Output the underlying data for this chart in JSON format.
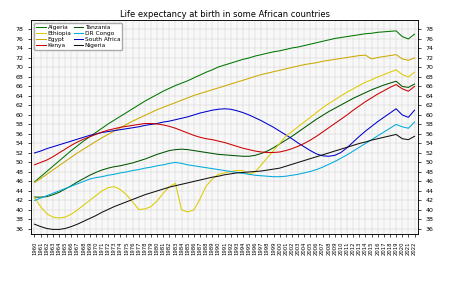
{
  "title": "Life expectancy at birth in some African countries",
  "years": [
    1960,
    1961,
    1962,
    1963,
    1964,
    1965,
    1966,
    1967,
    1968,
    1969,
    1970,
    1971,
    1972,
    1973,
    1974,
    1975,
    1976,
    1977,
    1978,
    1979,
    1980,
    1981,
    1982,
    1983,
    1984,
    1985,
    1986,
    1987,
    1988,
    1989,
    1990,
    1991,
    1992,
    1993,
    1994,
    1995,
    1996,
    1997,
    1998,
    1999,
    2000,
    2001,
    2002,
    2003,
    2004,
    2005,
    2006,
    2007,
    2008,
    2009,
    2010,
    2011,
    2012,
    2013,
    2014,
    2015,
    2016,
    2017,
    2018,
    2019,
    2020,
    2021,
    2022
  ],
  "series": {
    "Algeria": [
      45.9,
      47.0,
      48.1,
      49.2,
      50.3,
      51.4,
      52.5,
      53.5,
      54.5,
      55.4,
      56.3,
      57.2,
      58.1,
      58.9,
      59.7,
      60.5,
      61.3,
      62.1,
      62.9,
      63.6,
      64.3,
      65.0,
      65.6,
      66.2,
      66.7,
      67.2,
      67.8,
      68.4,
      69.0,
      69.5,
      70.1,
      70.5,
      70.9,
      71.3,
      71.7,
      72.0,
      72.4,
      72.7,
      73.0,
      73.3,
      73.5,
      73.8,
      74.1,
      74.3,
      74.6,
      74.9,
      75.2,
      75.5,
      75.8,
      76.1,
      76.3,
      76.5,
      76.7,
      76.9,
      77.1,
      77.2,
      77.4,
      77.5,
      77.6,
      77.7,
      76.5,
      76.0,
      77.0
    ],
    "Egypt": [
      45.8,
      46.6,
      47.5,
      48.4,
      49.3,
      50.2,
      51.1,
      52.0,
      52.8,
      53.6,
      54.4,
      55.2,
      55.9,
      56.6,
      57.3,
      58.0,
      58.7,
      59.3,
      59.9,
      60.5,
      61.1,
      61.6,
      62.1,
      62.6,
      63.1,
      63.6,
      64.1,
      64.5,
      64.9,
      65.3,
      65.7,
      66.1,
      66.5,
      66.9,
      67.3,
      67.7,
      68.1,
      68.5,
      68.8,
      69.1,
      69.4,
      69.7,
      70.0,
      70.3,
      70.6,
      70.8,
      71.0,
      71.3,
      71.5,
      71.7,
      71.9,
      72.1,
      72.3,
      72.5,
      72.6,
      71.8,
      72.1,
      72.3,
      72.5,
      72.7,
      71.8,
      71.5,
      72.0
    ],
    "Tanzania": [
      42.7,
      42.7,
      42.8,
      43.2,
      43.7,
      44.4,
      45.1,
      45.9,
      46.6,
      47.3,
      47.9,
      48.4,
      48.8,
      49.1,
      49.3,
      49.6,
      49.9,
      50.3,
      50.7,
      51.2,
      51.7,
      52.1,
      52.5,
      52.7,
      52.8,
      52.7,
      52.5,
      52.3,
      52.1,
      51.9,
      51.7,
      51.6,
      51.5,
      51.4,
      51.3,
      51.3,
      51.5,
      51.9,
      52.4,
      53.1,
      53.9,
      54.7,
      55.5,
      56.4,
      57.3,
      58.2,
      59.1,
      59.9,
      60.7,
      61.4,
      62.1,
      62.8,
      63.5,
      64.1,
      64.7,
      65.3,
      65.8,
      66.3,
      66.7,
      67.1,
      66.0,
      65.8,
      66.5
    ],
    "South Africa": [
      52.0,
      52.4,
      52.9,
      53.3,
      53.7,
      54.1,
      54.5,
      54.9,
      55.3,
      55.7,
      56.0,
      56.3,
      56.5,
      56.7,
      56.9,
      57.1,
      57.3,
      57.5,
      57.8,
      58.0,
      58.2,
      58.5,
      58.7,
      59.0,
      59.3,
      59.6,
      60.0,
      60.4,
      60.7,
      61.0,
      61.2,
      61.3,
      61.2,
      60.9,
      60.5,
      60.0,
      59.4,
      58.8,
      58.1,
      57.4,
      56.6,
      55.8,
      55.0,
      54.1,
      53.3,
      52.5,
      51.8,
      51.4,
      51.3,
      51.5,
      52.1,
      53.1,
      54.3,
      55.5,
      56.6,
      57.6,
      58.6,
      59.5,
      60.4,
      61.3,
      60.0,
      59.5,
      61.0
    ],
    "Ethiopia": [
      42.6,
      40.7,
      39.2,
      38.5,
      38.3,
      38.5,
      39.1,
      40.0,
      41.0,
      42.0,
      43.0,
      44.0,
      44.7,
      44.9,
      44.3,
      43.2,
      41.7,
      40.1,
      40.2,
      40.7,
      41.9,
      43.5,
      44.9,
      45.6,
      40.0,
      39.6,
      40.0,
      42.3,
      45.0,
      46.5,
      47.5,
      47.8,
      48.1,
      48.3,
      48.3,
      47.5,
      48.0,
      49.5,
      51.0,
      52.5,
      54.0,
      55.5,
      56.5,
      57.5,
      58.5,
      59.5,
      60.5,
      61.5,
      62.4,
      63.2,
      64.0,
      64.8,
      65.5,
      66.2,
      66.9,
      67.4,
      68.0,
      68.5,
      69.0,
      69.5,
      68.5,
      68.0,
      69.0
    ],
    "Kenya": [
      49.5,
      50.0,
      50.5,
      51.2,
      52.0,
      52.8,
      53.6,
      54.3,
      54.9,
      55.4,
      55.9,
      56.4,
      56.8,
      57.1,
      57.4,
      57.6,
      57.8,
      58.0,
      58.2,
      58.2,
      58.1,
      57.9,
      57.6,
      57.2,
      56.7,
      56.2,
      55.7,
      55.3,
      55.0,
      54.8,
      54.5,
      54.2,
      53.8,
      53.4,
      53.0,
      52.7,
      52.4,
      52.2,
      52.1,
      52.1,
      52.2,
      52.5,
      52.9,
      53.4,
      54.0,
      54.7,
      55.5,
      56.4,
      57.3,
      58.2,
      59.1,
      60.0,
      61.0,
      61.9,
      62.8,
      63.6,
      64.4,
      65.1,
      65.8,
      66.4,
      65.5,
      65.0,
      66.0
    ],
    "DR Congo": [
      42.0,
      42.5,
      43.0,
      43.5,
      44.0,
      44.5,
      45.0,
      45.5,
      46.0,
      46.5,
      46.8,
      47.0,
      47.3,
      47.5,
      47.8,
      48.0,
      48.3,
      48.5,
      48.8,
      49.0,
      49.3,
      49.5,
      49.8,
      50.0,
      49.8,
      49.5,
      49.3,
      49.1,
      48.9,
      48.7,
      48.5,
      48.3,
      48.1,
      47.9,
      47.7,
      47.5,
      47.3,
      47.2,
      47.1,
      47.0,
      47.0,
      47.1,
      47.3,
      47.5,
      47.8,
      48.1,
      48.5,
      49.0,
      49.6,
      50.2,
      50.9,
      51.6,
      52.4,
      53.2,
      54.0,
      54.8,
      55.6,
      56.4,
      57.2,
      58.0,
      57.5,
      57.2,
      58.5
    ],
    "Nigeria": [
      37.0,
      36.5,
      36.1,
      35.9,
      35.9,
      36.1,
      36.5,
      37.0,
      37.6,
      38.2,
      38.8,
      39.5,
      40.1,
      40.7,
      41.2,
      41.7,
      42.2,
      42.7,
      43.2,
      43.6,
      44.0,
      44.4,
      44.8,
      45.1,
      45.4,
      45.7,
      46.0,
      46.3,
      46.6,
      46.9,
      47.1,
      47.4,
      47.6,
      47.8,
      47.9,
      48.0,
      48.1,
      48.2,
      48.4,
      48.6,
      48.8,
      49.2,
      49.6,
      50.0,
      50.4,
      50.8,
      51.2,
      51.6,
      52.0,
      52.4,
      52.8,
      53.2,
      53.6,
      54.0,
      54.3,
      54.7,
      55.0,
      55.3,
      55.6,
      55.9,
      55.0,
      54.8,
      55.5
    ]
  },
  "colors": {
    "Algeria": "#007700",
    "Egypt": "#ccaa00",
    "Tanzania": "#005500",
    "South Africa": "#0000cc",
    "Ethiopia": "#ddcc00",
    "Kenya": "#cc0000",
    "DR Congo": "#00aadd",
    "Nigeria": "#111111"
  },
  "ylim": [
    35,
    80
  ],
  "yticks": [
    36,
    38,
    40,
    42,
    44,
    46,
    48,
    50,
    52,
    54,
    56,
    58,
    60,
    62,
    64,
    66,
    68,
    70,
    72,
    74,
    76,
    78
  ],
  "legend_order": [
    "Algeria",
    "Ethiopia",
    "Egypt",
    "Kenya",
    "Tanzania",
    "DR Congo",
    "South Africa",
    "Nigeria"
  ],
  "title_fontsize": 6.0
}
